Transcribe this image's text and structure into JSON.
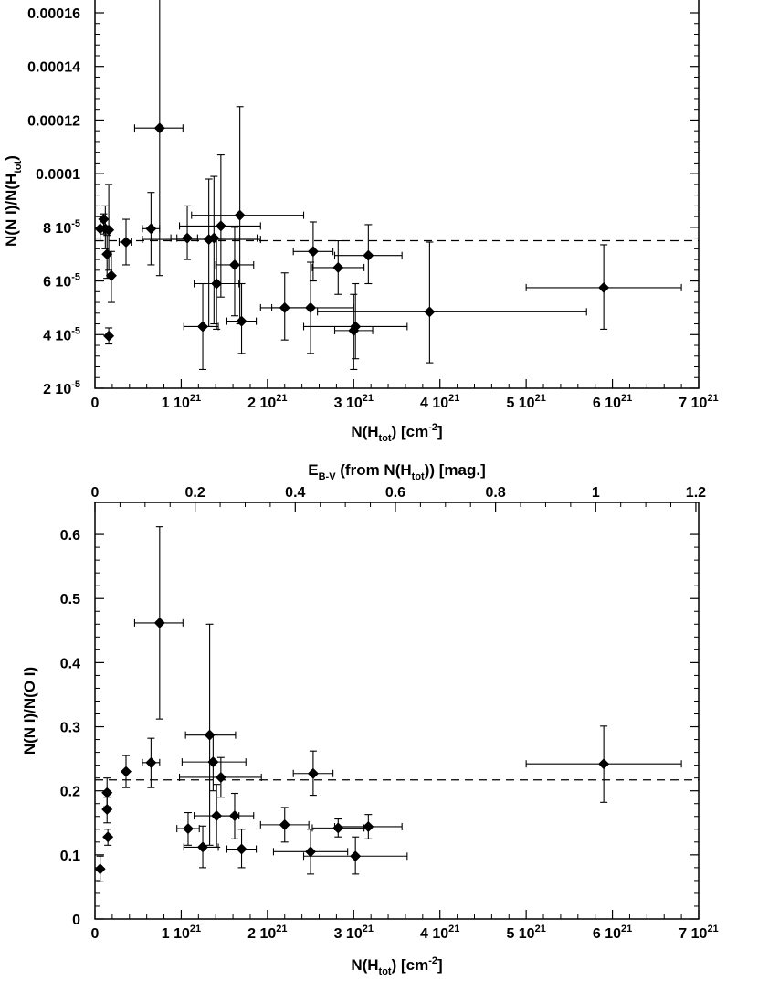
{
  "chart_data": [
    {
      "type": "scatter",
      "name": "top",
      "xlabel": {
        "main": "N(H",
        "sub": "tot",
        "tail": ") [cm",
        "sup": "-2",
        "end": "]"
      },
      "ylabel": {
        "main": "N(N I)/N(H",
        "sub": "tot",
        "end": ")"
      },
      "xlim": [
        0,
        7e+21
      ],
      "ylim": [
        2e-05,
        0.00016
      ],
      "x_ticks": [
        {
          "v": 0,
          "m": "0",
          "e": ""
        },
        {
          "v": 1e+21,
          "m": "1 10",
          "e": "21"
        },
        {
          "v": 2e+21,
          "m": "2 10",
          "e": "21"
        },
        {
          "v": 3e+21,
          "m": "3 10",
          "e": "21"
        },
        {
          "v": 4e+21,
          "m": "4 10",
          "e": "21"
        },
        {
          "v": 5e+21,
          "m": "5 10",
          "e": "21"
        },
        {
          "v": 6e+21,
          "m": "6 10",
          "e": "21"
        },
        {
          "v": 7e+21,
          "m": "7 10",
          "e": "21"
        }
      ],
      "y_ticks": [
        {
          "v": 2e-05,
          "m": "2 10",
          "e": "-5"
        },
        {
          "v": 4e-05,
          "m": "4 10",
          "e": "-5"
        },
        {
          "v": 6e-05,
          "m": "6 10",
          "e": "-5"
        },
        {
          "v": 8e-05,
          "m": "8 10",
          "e": "-5"
        },
        {
          "v": 0.0001,
          "m": "0.0001",
          "e": ""
        },
        {
          "v": 0.00012,
          "m": "0.00012",
          "e": ""
        },
        {
          "v": 0.00014,
          "m": "0.00014",
          "e": ""
        },
        {
          "v": 0.00016,
          "m": "0.00016",
          "e": ""
        }
      ],
      "reference_line": 7.5e-05,
      "points": [
        {
          "x": 6e+19,
          "y": 7.95e-05,
          "xlo": 6e+19,
          "xhi": 6e+19,
          "ylo": 7.5e-05,
          "yhi": 8.4e-05
        },
        {
          "x": 1e+20,
          "y": 8.3e-05,
          "xlo": 1e+20,
          "xhi": 1e+20,
          "ylo": 7.75e-05,
          "yhi": 8.5e-05
        },
        {
          "x": 1.2e+20,
          "y": 7.95e-05,
          "xlo": 1.2e+20,
          "xhi": 1.2e+20,
          "ylo": 7.2e-05,
          "yhi": 8.8e-05
        },
        {
          "x": 1.6e+20,
          "y": 7.9e-05,
          "xlo": 1.6e+20,
          "xhi": 1.6e+20,
          "ylo": 6.4e-05,
          "yhi": 9.6e-05
        },
        {
          "x": 1.6e+20,
          "y": 3.95e-05,
          "xlo": 1.6e+20,
          "xhi": 1.6e+20,
          "ylo": 3.65e-05,
          "yhi": 4.25e-05
        },
        {
          "x": 1.4e+20,
          "y": 7e-05,
          "xlo": 1.4e+20,
          "xhi": 1.4e+20,
          "ylo": 6.1e-05,
          "yhi": 7.7e-05
        },
        {
          "x": 1.9e+20,
          "y": 6.2e-05,
          "xlo": 1.9e+20,
          "xhi": 1.9e+20,
          "ylo": 5.2e-05,
          "yhi": 7.1e-05
        },
        {
          "x": 3.6e+20,
          "y": 7.45e-05,
          "xlo": 2.8e+20,
          "xhi": 4.2e+20,
          "ylo": 6.6e-05,
          "yhi": 8.3e-05
        },
        {
          "x": 6.5e+20,
          "y": 7.95e-05,
          "xlo": 5.5e+20,
          "xhi": 7.5e+20,
          "ylo": 6.6e-05,
          "yhi": 9.3e-05
        },
        {
          "x": 7.5e+20,
          "y": 0.000117,
          "xlo": 4.6e+20,
          "xhi": 1.02e+21,
          "ylo": 6.2e-05,
          "yhi": 0.000171
        },
        {
          "x": 1.07e+21,
          "y": 7.6e-05,
          "xlo": 9.5e+20,
          "xhi": 1.19e+21,
          "ylo": 6.8e-05,
          "yhi": 8.8e-05
        },
        {
          "x": 1.25e+21,
          "y": 4.3e-05,
          "xlo": 1.03e+21,
          "xhi": 1.43e+21,
          "ylo": 2.7e-05,
          "yhi": 5.9e-05
        },
        {
          "x": 1.32e+21,
          "y": 7.55e-05,
          "xlo": 5.5e+20,
          "xhi": 1.92e+21,
          "ylo": 4.3e-05,
          "yhi": 9.8e-05
        },
        {
          "x": 1.38e+21,
          "y": 7.6e-05,
          "xlo": 8.8e+20,
          "xhi": 1.88e+21,
          "ylo": 4.4e-05,
          "yhi": 9.9e-05
        },
        {
          "x": 1.41e+21,
          "y": 5.9e-05,
          "xlo": 1.15e+21,
          "xhi": 1.67e+21,
          "ylo": 4.2e-05,
          "yhi": 7.6e-05
        },
        {
          "x": 1.46e+21,
          "y": 8.05e-05,
          "xlo": 9.8e+20,
          "xhi": 1.92e+21,
          "ylo": 5.4e-05,
          "yhi": 0.000107
        },
        {
          "x": 1.62e+21,
          "y": 6.6e-05,
          "xlo": 1.4e+21,
          "xhi": 1.84e+21,
          "ylo": 4.7e-05,
          "yhi": 8e-05
        },
        {
          "x": 1.68e+21,
          "y": 8.45e-05,
          "xlo": 1.12e+21,
          "xhi": 2.42e+21,
          "ylo": 4.4e-05,
          "yhi": 0.000125
        },
        {
          "x": 1.7e+21,
          "y": 4.5e-05,
          "xlo": 1.53e+21,
          "xhi": 1.87e+21,
          "ylo": 3.3e-05,
          "yhi": 5.9e-05
        },
        {
          "x": 2.2e+21,
          "y": 5e-05,
          "xlo": 1.92e+21,
          "xhi": 2.48e+21,
          "ylo": 3.8e-05,
          "yhi": 6.3e-05
        },
        {
          "x": 2.5e+21,
          "y": 5e-05,
          "xlo": 2.05e+21,
          "xhi": 3e+21,
          "ylo": 3.3e-05,
          "yhi": 6.7e-05
        },
        {
          "x": 2.53e+21,
          "y": 7.1e-05,
          "xlo": 2.3e+21,
          "xhi": 2.76e+21,
          "ylo": 6e-05,
          "yhi": 8.2e-05
        },
        {
          "x": 2.82e+21,
          "y": 6.5e-05,
          "xlo": 2.52e+21,
          "xhi": 3.12e+21,
          "ylo": 5.5e-05,
          "yhi": 7.5e-05
        },
        {
          "x": 3e+21,
          "y": 4.15e-05,
          "xlo": 2.78e+21,
          "xhi": 3.22e+21,
          "ylo": 2.7e-05,
          "yhi": 5.5e-05
        },
        {
          "x": 3.02e+21,
          "y": 4.3e-05,
          "xlo": 2.42e+21,
          "xhi": 3.62e+21,
          "ylo": 3.1e-05,
          "yhi": 5.9e-05
        },
        {
          "x": 3.17e+21,
          "y": 6.95e-05,
          "xlo": 2.78e+21,
          "xhi": 3.56e+21,
          "ylo": 5.9e-05,
          "yhi": 8.1e-05
        },
        {
          "x": 3.88e+21,
          "y": 4.85e-05,
          "xlo": 2.58e+21,
          "xhi": 5.7e+21,
          "ylo": 2.95e-05,
          "yhi": 7.45e-05
        },
        {
          "x": 5.9e+21,
          "y": 5.75e-05,
          "xlo": 5e+21,
          "xhi": 6.8e+21,
          "ylo": 4.2e-05,
          "yhi": 7.35e-05
        }
      ]
    },
    {
      "type": "scatter",
      "name": "bottom",
      "xlabel": {
        "main": "N(H",
        "sub": "tot",
        "tail": ") [cm",
        "sup": "-2",
        "end": "]"
      },
      "ylabel": {
        "main": "N(N I)/N(O I)",
        "sub": "",
        "end": ""
      },
      "top_xlabel": {
        "main": "E",
        "sub": "B-V",
        "mid": "  (from N(H",
        "sub2": "tot",
        "end": ")) [mag.]"
      },
      "xlim": [
        0,
        7e+21
      ],
      "ylim": [
        0,
        0.65
      ],
      "top_xlim": [
        0,
        1.2056
      ],
      "x_ticks": [
        {
          "v": 0,
          "m": "0",
          "e": ""
        },
        {
          "v": 1e+21,
          "m": "1 10",
          "e": "21"
        },
        {
          "v": 2e+21,
          "m": "2 10",
          "e": "21"
        },
        {
          "v": 3e+21,
          "m": "3 10",
          "e": "21"
        },
        {
          "v": 4e+21,
          "m": "4 10",
          "e": "21"
        },
        {
          "v": 5e+21,
          "m": "5 10",
          "e": "21"
        },
        {
          "v": 6e+21,
          "m": "6 10",
          "e": "21"
        },
        {
          "v": 7e+21,
          "m": "7 10",
          "e": "21"
        }
      ],
      "top_ticks": [
        {
          "v": 0,
          "m": "0"
        },
        {
          "v": 0.2,
          "m": "0.2"
        },
        {
          "v": 0.4,
          "m": "0.4"
        },
        {
          "v": 0.6,
          "m": "0.6"
        },
        {
          "v": 0.8,
          "m": "0.8"
        },
        {
          "v": 1,
          "m": "1"
        },
        {
          "v": 1.2,
          "m": "1.2"
        }
      ],
      "y_ticks": [
        {
          "v": 0,
          "m": "0",
          "e": ""
        },
        {
          "v": 0.1,
          "m": "0.1",
          "e": ""
        },
        {
          "v": 0.2,
          "m": "0.2",
          "e": ""
        },
        {
          "v": 0.3,
          "m": "0.3",
          "e": ""
        },
        {
          "v": 0.4,
          "m": "0.4",
          "e": ""
        },
        {
          "v": 0.5,
          "m": "0.5",
          "e": ""
        },
        {
          "v": 0.6,
          "m": "0.6",
          "e": ""
        }
      ],
      "reference_line": 0.217,
      "points": [
        {
          "x": 6e+19,
          "y": 0.078,
          "xlo": 6e+19,
          "xhi": 6e+19,
          "ylo": 0.058,
          "yhi": 0.098
        },
        {
          "x": 1.4e+20,
          "y": 0.197,
          "xlo": 1.4e+20,
          "xhi": 1.4e+20,
          "ylo": 0.175,
          "yhi": 0.22
        },
        {
          "x": 1.4e+20,
          "y": 0.171,
          "xlo": 1.4e+20,
          "xhi": 1.4e+20,
          "ylo": 0.15,
          "yhi": 0.19
        },
        {
          "x": 1.5e+20,
          "y": 0.128,
          "xlo": 1.5e+20,
          "xhi": 1.5e+20,
          "ylo": 0.115,
          "yhi": 0.14
        },
        {
          "x": 3.6e+20,
          "y": 0.23,
          "xlo": 3.6e+20,
          "xhi": 3.6e+20,
          "ylo": 0.205,
          "yhi": 0.255
        },
        {
          "x": 6.5e+20,
          "y": 0.244,
          "xlo": 5.5e+20,
          "xhi": 7.5e+20,
          "ylo": 0.205,
          "yhi": 0.282
        },
        {
          "x": 7.5e+20,
          "y": 0.462,
          "xlo": 4.6e+20,
          "xhi": 1.02e+21,
          "ylo": 0.312,
          "yhi": 0.612
        },
        {
          "x": 1.08e+21,
          "y": 0.141,
          "xlo": 9.5e+20,
          "xhi": 1.21e+21,
          "ylo": 0.115,
          "yhi": 0.166
        },
        {
          "x": 1.25e+21,
          "y": 0.112,
          "xlo": 1.03e+21,
          "xhi": 1.43e+21,
          "ylo": 0.08,
          "yhi": 0.145
        },
        {
          "x": 1.33e+21,
          "y": 0.287,
          "xlo": 1.05e+21,
          "xhi": 1.63e+21,
          "ylo": 0.115,
          "yhi": 0.46
        },
        {
          "x": 1.37e+21,
          "y": 0.245,
          "xlo": 1.01e+21,
          "xhi": 1.75e+21,
          "ylo": 0.2,
          "yhi": 0.288
        },
        {
          "x": 1.41e+21,
          "y": 0.161,
          "xlo": 1.15e+21,
          "xhi": 1.67e+21,
          "ylo": 0.112,
          "yhi": 0.21
        },
        {
          "x": 1.46e+21,
          "y": 0.221,
          "xlo": 9.8e+20,
          "xhi": 1.93e+21,
          "ylo": 0.19,
          "yhi": 0.252
        },
        {
          "x": 1.62e+21,
          "y": 0.161,
          "xlo": 1.4e+21,
          "xhi": 1.84e+21,
          "ylo": 0.125,
          "yhi": 0.196
        },
        {
          "x": 1.7e+21,
          "y": 0.109,
          "xlo": 1.53e+21,
          "xhi": 1.87e+21,
          "ylo": 0.08,
          "yhi": 0.14
        },
        {
          "x": 2.2e+21,
          "y": 0.147,
          "xlo": 1.92e+21,
          "xhi": 2.48e+21,
          "ylo": 0.12,
          "yhi": 0.174
        },
        {
          "x": 2.5e+21,
          "y": 0.105,
          "xlo": 2.07e+21,
          "xhi": 2.93e+21,
          "ylo": 0.07,
          "yhi": 0.14
        },
        {
          "x": 2.53e+21,
          "y": 0.227,
          "xlo": 2.3e+21,
          "xhi": 2.76e+21,
          "ylo": 0.193,
          "yhi": 0.262
        },
        {
          "x": 2.82e+21,
          "y": 0.142,
          "xlo": 2.52e+21,
          "xhi": 3.12e+21,
          "ylo": 0.128,
          "yhi": 0.156
        },
        {
          "x": 3.02e+21,
          "y": 0.098,
          "xlo": 2.42e+21,
          "xhi": 3.62e+21,
          "ylo": 0.07,
          "yhi": 0.128
        },
        {
          "x": 3.17e+21,
          "y": 0.144,
          "xlo": 2.78e+21,
          "xhi": 3.56e+21,
          "ylo": 0.125,
          "yhi": 0.163
        },
        {
          "x": 5.9e+21,
          "y": 0.242,
          "xlo": 5e+21,
          "xhi": 6.8e+21,
          "ylo": 0.182,
          "yhi": 0.301
        }
      ]
    }
  ]
}
